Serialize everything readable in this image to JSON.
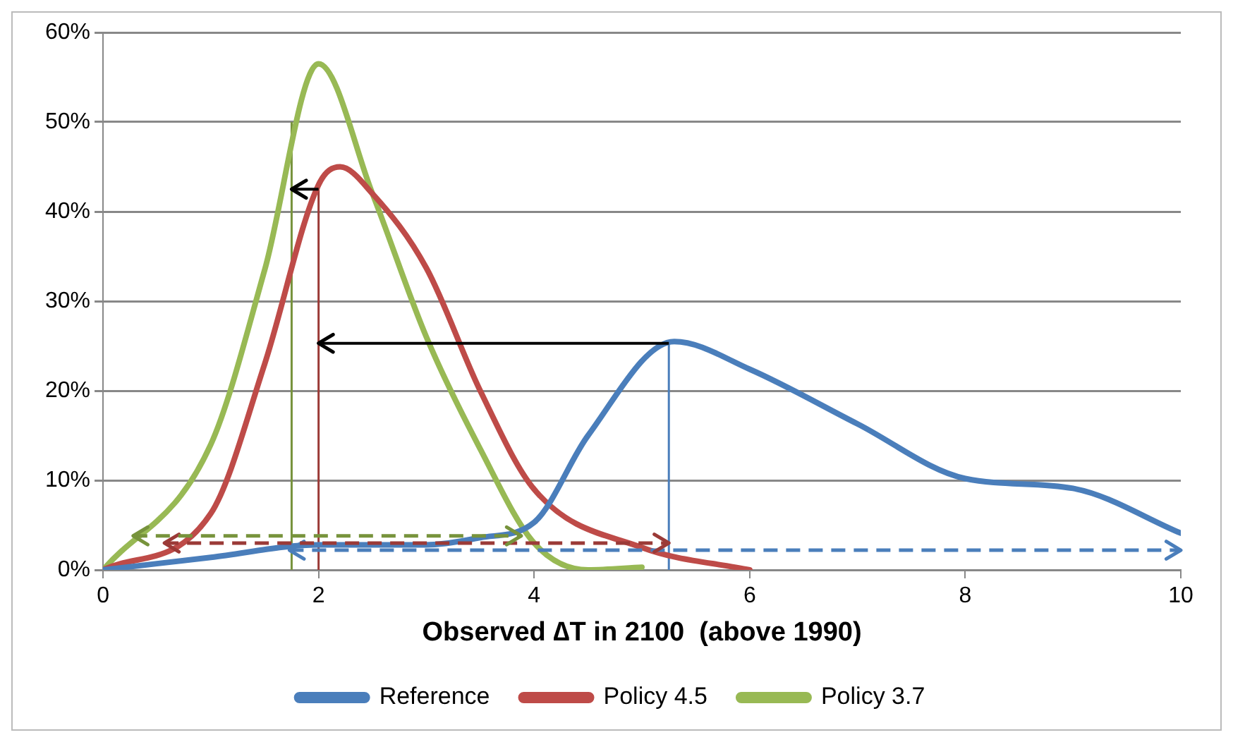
{
  "chart_data": {
    "type": "line",
    "xlabel": "Observed ∆T in 2100  (above 1990)",
    "xlim": [
      0,
      10
    ],
    "xticks": [
      0,
      2,
      4,
      6,
      8,
      10
    ],
    "ylim": [
      0,
      60
    ],
    "yticks": [
      {
        "value": 0,
        "label": "0%"
      },
      {
        "value": 10,
        "label": "10%"
      },
      {
        "value": 20,
        "label": "20%"
      },
      {
        "value": 30,
        "label": "30%"
      },
      {
        "value": 40,
        "label": "40%"
      },
      {
        "value": 50,
        "label": "50%"
      },
      {
        "value": 60,
        "label": "60%"
      }
    ],
    "grid": "y",
    "legend": "bottom",
    "marker": "none",
    "series": [
      {
        "name": "Reference",
        "color": "#4a7ebb",
        "x": [
          0,
          1,
          2,
          3,
          3.5,
          4,
          4.5,
          5.3,
          6,
          7,
          8,
          9,
          10
        ],
        "values": [
          0,
          1.4,
          2.8,
          2.8,
          3.6,
          5.3,
          15,
          25.5,
          22.4,
          16.3,
          10.2,
          9.1,
          4.1
        ]
      },
      {
        "name": "Policy 4.5",
        "color": "#be4b48",
        "x": [
          0,
          1,
          1.5,
          2,
          2.2,
          2.5,
          3,
          3.5,
          4,
          5,
          6
        ],
        "values": [
          0,
          6.3,
          23,
          43,
          45,
          42,
          33.7,
          20,
          9,
          2.5,
          0
        ]
      },
      {
        "name": "Policy 3.7",
        "color": "#98b954",
        "x": [
          0,
          1,
          1.5,
          2,
          2.5,
          3,
          3.5,
          4,
          4.5,
          5
        ],
        "values": [
          0,
          14,
          33.5,
          56.5,
          42,
          26,
          13.5,
          3,
          0,
          0.3
        ]
      },
      {
        "color": "#4a7ebb",
        "x": [
          5.25,
          5.25
        ],
        "values": [
          0,
          25.5
        ]
      },
      {
        "color": "#9b3a37",
        "x": [
          2,
          2
        ],
        "values": [
          0,
          43
        ]
      },
      {
        "color": "#77933c",
        "x": [
          1.75,
          1.75
        ],
        "values": [
          0,
          50
        ]
      }
    ]
  }
}
